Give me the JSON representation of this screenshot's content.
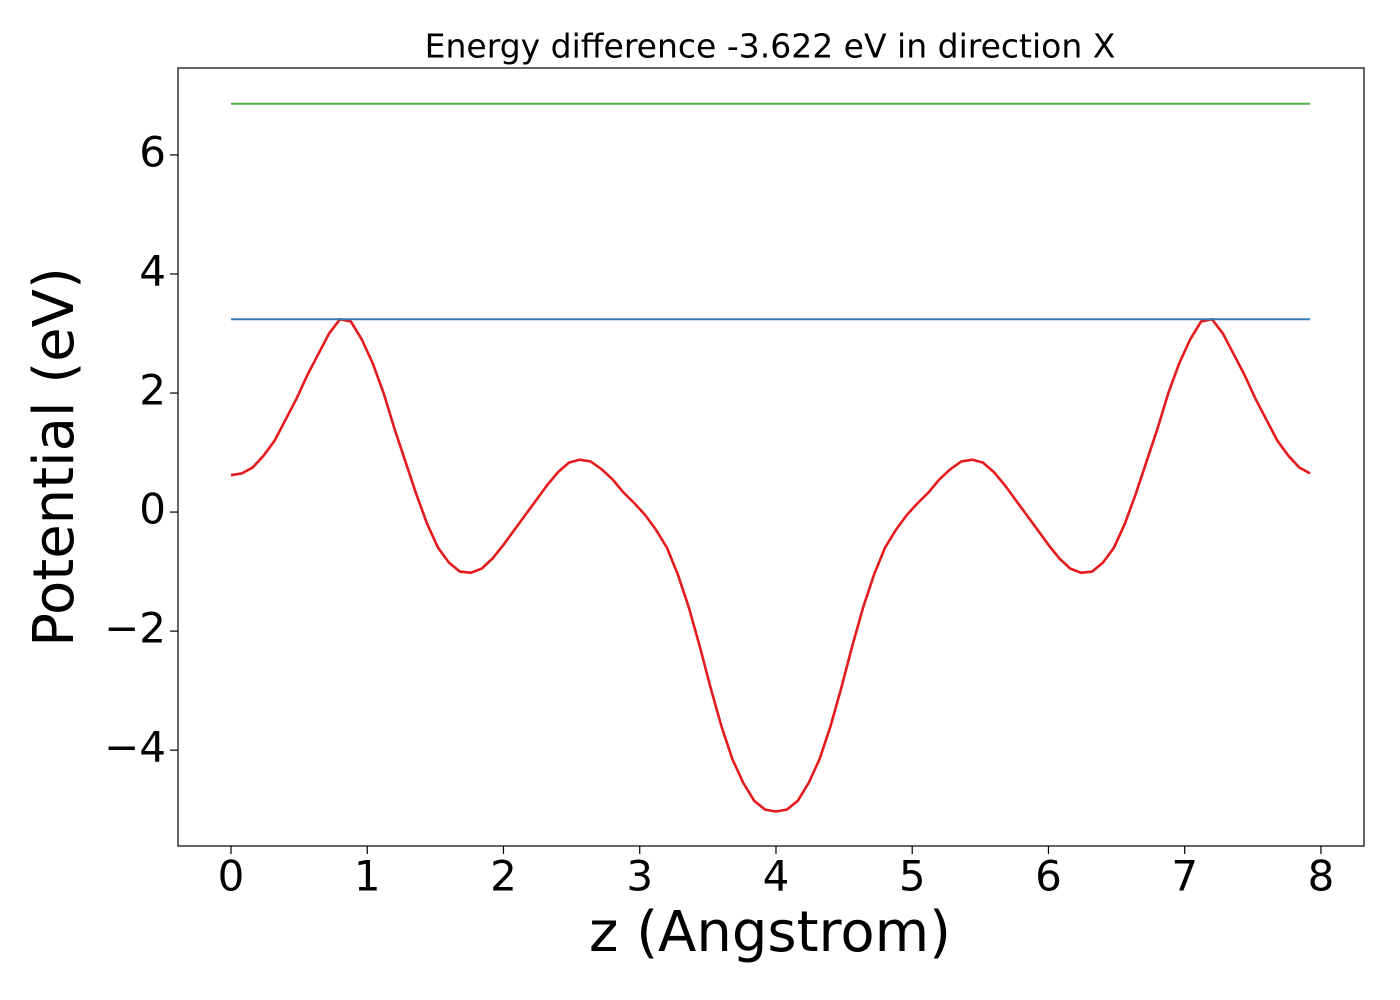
{
  "chart_data": {
    "type": "line",
    "title": "Energy difference -3.622 eV in direction X",
    "xlabel": "z (Angstrom)",
    "ylabel": "Potential (eV)",
    "xlim": [
      -0.389,
      8.316
    ],
    "ylim": [
      -5.61,
      7.46
    ],
    "xticks": [
      0,
      1,
      2,
      3,
      4,
      5,
      6,
      7,
      8
    ],
    "yticks": [
      {
        "value": -4,
        "label": "−4"
      },
      {
        "value": -2,
        "label": "−2"
      },
      0,
      2,
      4,
      6
    ],
    "series": [
      {
        "color": "#e41a1c",
        "x": [
          0,
          0.08,
          0.16,
          0.24,
          0.32,
          0.4,
          0.48,
          0.56,
          0.64,
          0.72,
          0.8,
          0.88,
          0.96,
          1.04,
          1.12,
          1.2,
          1.28,
          1.36,
          1.44,
          1.52,
          1.6,
          1.68,
          1.76,
          1.84,
          1.92,
          2,
          2.08,
          2.16,
          2.24,
          2.32,
          2.4,
          2.48,
          2.56,
          2.64,
          2.72,
          2.8,
          2.88,
          2.96,
          3.04,
          3.12,
          3.2,
          3.28,
          3.36,
          3.44,
          3.52,
          3.6,
          3.68,
          3.76,
          3.84,
          3.92,
          4,
          4.08,
          4.16,
          4.24,
          4.32,
          4.4,
          4.48,
          4.56,
          4.64,
          4.72,
          4.8,
          4.88,
          4.96,
          5.04,
          5.12,
          5.2,
          5.28,
          5.36,
          5.44,
          5.52,
          5.6,
          5.68,
          5.76,
          5.84,
          5.92,
          6,
          6.08,
          6.16,
          6.24,
          6.32,
          6.4,
          6.48,
          6.56,
          6.64,
          6.72,
          6.8,
          6.88,
          6.96,
          7.04,
          7.12,
          7.2,
          7.28,
          7.36,
          7.44,
          7.52,
          7.6,
          7.68,
          7.76,
          7.84,
          7.92
        ],
        "values": [
          0.62,
          0.65,
          0.75,
          0.95,
          1.2,
          1.55,
          1.9,
          2.3,
          2.65,
          3.0,
          3.24,
          3.2,
          2.9,
          2.5,
          2.0,
          1.4,
          0.85,
          0.3,
          -0.2,
          -0.6,
          -0.85,
          -1.0,
          -1.02,
          -0.95,
          -0.78,
          -0.55,
          -0.3,
          -0.05,
          0.2,
          0.45,
          0.67,
          0.83,
          0.88,
          0.85,
          0.72,
          0.55,
          0.33,
          0.15,
          -0.05,
          -0.3,
          -0.6,
          -1.05,
          -1.6,
          -2.25,
          -2.95,
          -3.6,
          -4.15,
          -4.55,
          -4.85,
          -5.0,
          -5.03,
          -5.0,
          -4.85,
          -4.55,
          -4.15,
          -3.6,
          -2.95,
          -2.25,
          -1.6,
          -1.05,
          -0.6,
          -0.3,
          -0.05,
          0.15,
          0.33,
          0.55,
          0.72,
          0.85,
          0.88,
          0.83,
          0.67,
          0.45,
          0.2,
          -0.05,
          -0.3,
          -0.55,
          -0.78,
          -0.95,
          -1.02,
          -1.0,
          -0.85,
          -0.6,
          -0.2,
          0.3,
          0.85,
          1.4,
          2.0,
          2.5,
          2.9,
          3.2,
          3.24,
          3.0,
          2.65,
          2.3,
          1.9,
          1.55,
          1.2,
          0.95,
          0.75,
          0.65
        ]
      },
      {
        "color": "#377eb8",
        "x": [
          0,
          7.92
        ],
        "values": [
          3.24,
          3.24
        ]
      },
      {
        "color": "#4daf4a",
        "x": [
          0,
          7.92
        ],
        "values": [
          6.86,
          6.86
        ]
      }
    ]
  }
}
